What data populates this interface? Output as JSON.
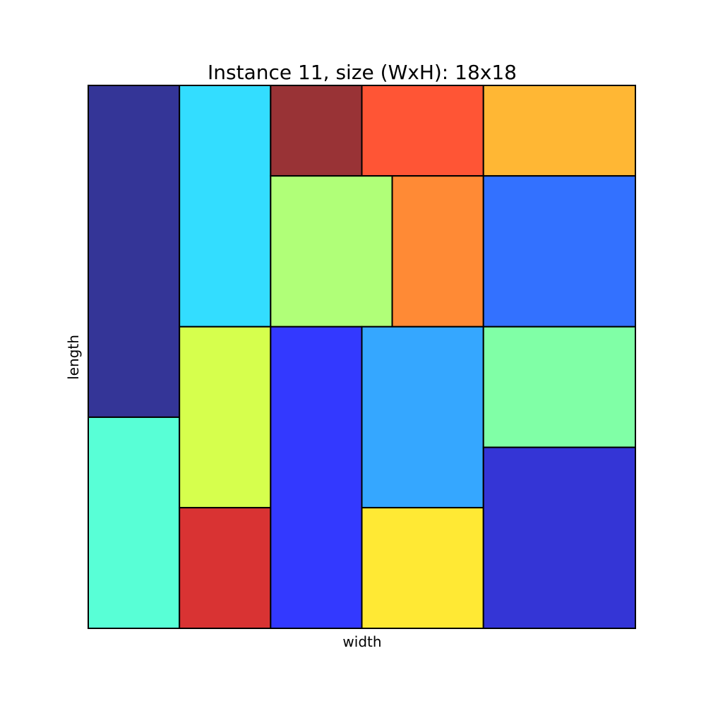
{
  "chart_data": {
    "type": "rect_packing",
    "title": "Instance 11, size (WxH): 18x18",
    "xlabel": "width",
    "ylabel": "length",
    "xlim": [
      0,
      18
    ],
    "ylim": [
      0,
      18
    ],
    "grid": false,
    "axis_ticks": false,
    "rectangles": [
      {
        "x": 0,
        "y": 7,
        "w": 3,
        "h": 11,
        "color": "#343597"
      },
      {
        "x": 0,
        "y": 0,
        "w": 3,
        "h": 7,
        "color": "#58ffd6"
      },
      {
        "x": 3,
        "y": 10,
        "w": 3,
        "h": 8,
        "color": "#33ddff"
      },
      {
        "x": 3,
        "y": 4,
        "w": 3,
        "h": 6,
        "color": "#d6ff4d"
      },
      {
        "x": 3,
        "y": 0,
        "w": 3,
        "h": 4,
        "color": "#d93333"
      },
      {
        "x": 6,
        "y": 15,
        "w": 3,
        "h": 3,
        "color": "#993336"
      },
      {
        "x": 9,
        "y": 15,
        "w": 4,
        "h": 3,
        "color": "#ff5535"
      },
      {
        "x": 13,
        "y": 15,
        "w": 5,
        "h": 3,
        "color": "#ffb734"
      },
      {
        "x": 6,
        "y": 10,
        "w": 4,
        "h": 5,
        "color": "#b0ff78"
      },
      {
        "x": 10,
        "y": 10,
        "w": 3,
        "h": 5,
        "color": "#ff8a35"
      },
      {
        "x": 13,
        "y": 10,
        "w": 5,
        "h": 5,
        "color": "#3371ff"
      },
      {
        "x": 6,
        "y": 0,
        "w": 3,
        "h": 10,
        "color": "#3339ff"
      },
      {
        "x": 9,
        "y": 4,
        "w": 4,
        "h": 6,
        "color": "#35a7ff"
      },
      {
        "x": 9,
        "y": 0,
        "w": 4,
        "h": 4,
        "color": "#ffe934"
      },
      {
        "x": 13,
        "y": 6,
        "w": 5,
        "h": 4,
        "color": "#80ffa6"
      },
      {
        "x": 13,
        "y": 0,
        "w": 5,
        "h": 6,
        "color": "#3435d6"
      }
    ]
  }
}
